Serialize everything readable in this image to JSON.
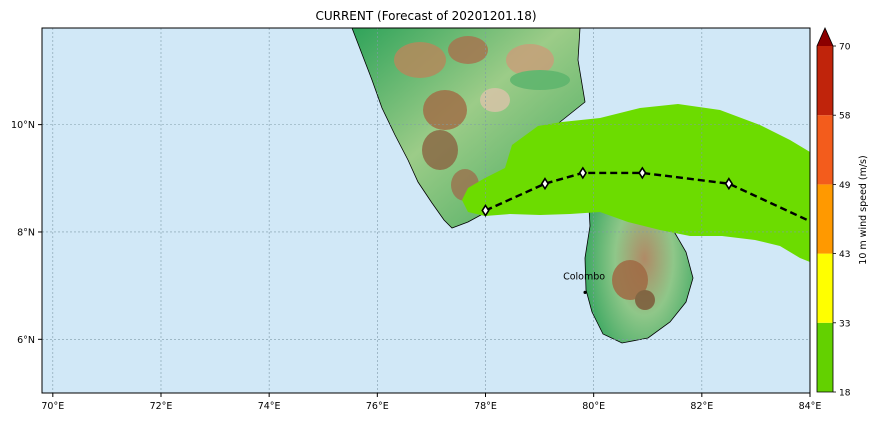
{
  "title": "CURRENT (Forecast of 20201201.18)",
  "map": {
    "lon_range": [
      69.8,
      84
    ],
    "lat_range": [
      5,
      11.8
    ],
    "x_ticks": [
      {
        "value": 70,
        "label": "70°E"
      },
      {
        "value": 72,
        "label": "72°E"
      },
      {
        "value": 74,
        "label": "74°E"
      },
      {
        "value": 76,
        "label": "76°E"
      },
      {
        "value": 78,
        "label": "78°E"
      },
      {
        "value": 80,
        "label": "80°E"
      },
      {
        "value": 82,
        "label": "82°E"
      },
      {
        "value": 84,
        "label": "84°E"
      }
    ],
    "y_ticks": [
      {
        "value": 6,
        "label": "6°N"
      },
      {
        "value": 8,
        "label": "8°N"
      },
      {
        "value": 10,
        "label": "10°N"
      }
    ],
    "grid": true,
    "ocean_color": "#d1e8f7",
    "grid_color": "#7f9aa8",
    "places": [
      {
        "name": "Colombo",
        "lon": 79.86,
        "lat": 6.93
      }
    ]
  },
  "track": {
    "points": [
      {
        "lon": 78.0,
        "lat": 8.4
      },
      {
        "lon": 79.1,
        "lat": 8.9
      },
      {
        "lon": 79.8,
        "lat": 9.1
      },
      {
        "lon": 80.9,
        "lat": 9.1
      },
      {
        "lon": 82.5,
        "lat": 8.9
      },
      {
        "lon": 84.0,
        "lat": 8.2
      }
    ]
  },
  "wind_swath": {
    "value_band": "18-33",
    "color": "#6cdc00"
  },
  "colorbar": {
    "label": "10 m wind speed (m/s)",
    "ticks": [
      "18",
      "33",
      "43",
      "49",
      "58",
      "70"
    ],
    "colors": [
      "#63d100",
      "#ffff00",
      "#ff9900",
      "#f35c1c",
      "#c0240b"
    ],
    "extend_color": "#8b0000"
  }
}
